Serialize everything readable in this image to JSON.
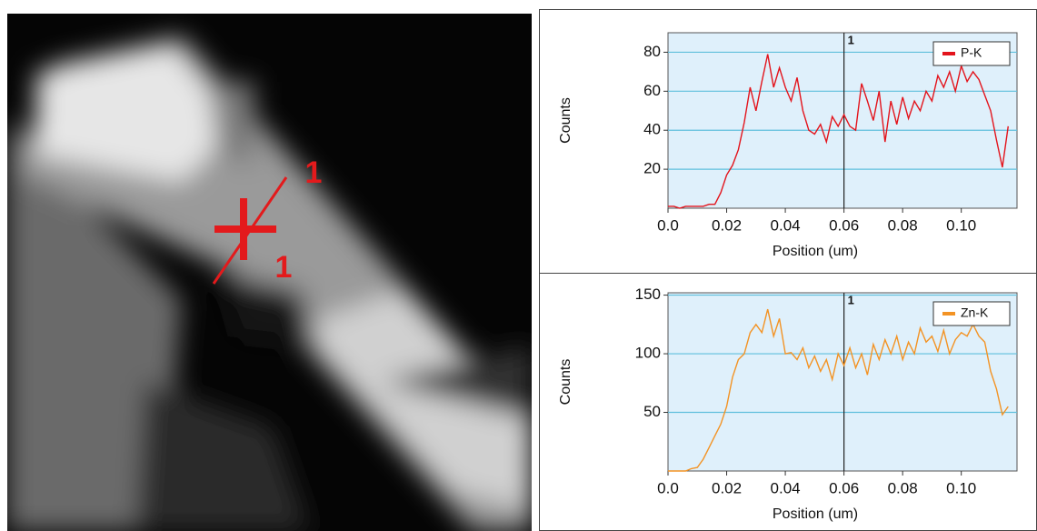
{
  "image": {
    "annotations": [
      "1",
      "1"
    ]
  },
  "chart_data": [
    {
      "type": "line",
      "ylabel": "Counts",
      "xlabel": "Position (um)",
      "xlim": [
        0,
        0.119
      ],
      "ylim": [
        0,
        90
      ],
      "xticks": [
        {
          "value": 0,
          "label": "0.0"
        },
        0.02,
        0.04,
        0.06,
        0.08,
        {
          "value": 0.1,
          "label": "0.10"
        }
      ],
      "yticks": [
        20,
        40,
        60,
        80
      ],
      "grid": true,
      "legend": "upper right",
      "marker": {
        "x": 0.06,
        "label": "1"
      },
      "x": [
        0,
        0.002,
        0.004,
        0.006,
        0.008,
        0.01,
        0.012,
        0.014,
        0.016,
        0.018,
        0.02,
        0.022,
        0.024,
        0.026,
        0.028,
        0.03,
        0.032,
        0.034,
        0.036,
        0.038,
        0.04,
        0.042,
        0.044,
        0.046,
        0.048,
        0.05,
        0.052,
        0.054,
        0.056,
        0.058,
        0.06,
        0.062,
        0.064,
        0.066,
        0.068,
        0.07,
        0.072,
        0.074,
        0.076,
        0.078,
        0.08,
        0.082,
        0.084,
        0.086,
        0.088,
        0.09,
        0.092,
        0.094,
        0.096,
        0.098,
        0.1,
        0.102,
        0.104,
        0.106,
        0.108,
        0.11,
        0.112,
        0.114,
        0.116
      ],
      "series": [
        {
          "name": "P-K",
          "color": "#e3141c",
          "values": [
            1,
            1,
            0,
            1,
            1,
            1,
            1,
            2,
            2,
            8,
            17,
            22,
            30,
            44,
            62,
            50,
            65,
            79,
            62,
            72,
            62,
            55,
            67,
            50,
            40,
            38,
            43,
            34,
            47,
            42,
            48,
            42,
            40,
            64,
            55,
            45,
            60,
            34,
            55,
            43,
            57,
            46,
            55,
            50,
            60,
            55,
            68,
            62,
            70,
            60,
            73,
            65,
            70,
            66,
            58,
            50,
            35,
            21,
            42
          ]
        }
      ]
    },
    {
      "type": "line",
      "ylabel": "Counts",
      "xlabel": "Position (um)",
      "xlim": [
        0,
        0.119
      ],
      "ylim": [
        0,
        152
      ],
      "xticks": [
        {
          "value": 0,
          "label": "0.0"
        },
        0.02,
        0.04,
        0.06,
        0.08,
        {
          "value": 0.1,
          "label": "0.10"
        }
      ],
      "yticks": [
        50,
        100,
        150
      ],
      "grid": true,
      "legend": "upper right",
      "marker": {
        "x": 0.06,
        "label": "1"
      },
      "x": [
        0,
        0.002,
        0.004,
        0.006,
        0.008,
        0.01,
        0.012,
        0.014,
        0.016,
        0.018,
        0.02,
        0.022,
        0.024,
        0.026,
        0.028,
        0.03,
        0.032,
        0.034,
        0.036,
        0.038,
        0.04,
        0.042,
        0.044,
        0.046,
        0.048,
        0.05,
        0.052,
        0.054,
        0.056,
        0.058,
        0.06,
        0.062,
        0.064,
        0.066,
        0.068,
        0.07,
        0.072,
        0.074,
        0.076,
        0.078,
        0.08,
        0.082,
        0.084,
        0.086,
        0.088,
        0.09,
        0.092,
        0.094,
        0.096,
        0.098,
        0.1,
        0.102,
        0.104,
        0.106,
        0.108,
        0.11,
        0.112,
        0.114,
        0.116
      ],
      "series": [
        {
          "name": "Zn-K",
          "color": "#f39324",
          "values": [
            0,
            0,
            0,
            0,
            2,
            3,
            10,
            20,
            30,
            40,
            55,
            80,
            95,
            100,
            118,
            125,
            118,
            138,
            115,
            130,
            100,
            101,
            95,
            105,
            88,
            98,
            85,
            95,
            78,
            100,
            90,
            105,
            88,
            100,
            82,
            108,
            95,
            112,
            100,
            115,
            95,
            110,
            100,
            122,
            110,
            115,
            102,
            120,
            100,
            112,
            118,
            115,
            125,
            115,
            110,
            85,
            70,
            48,
            55
          ]
        }
      ]
    }
  ]
}
